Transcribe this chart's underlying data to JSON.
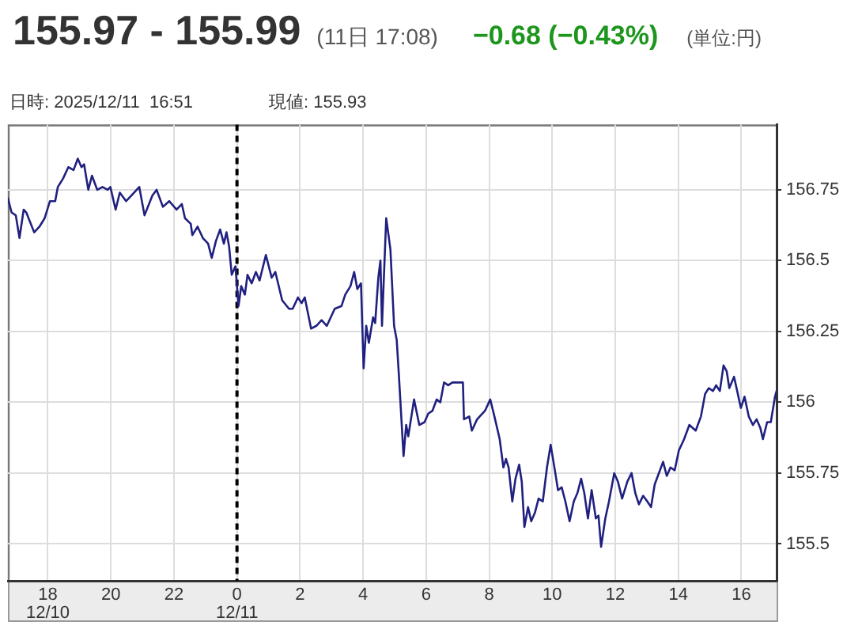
{
  "chart_data": {
    "type": "line",
    "title": "155.97 - 155.99",
    "subtitle": "(11日 17:08)",
    "annotations": [
      "−0.68 (−0.43%)",
      "(単位:円)",
      "日時: 2025/12/11  16:51",
      "現値: 155.93"
    ],
    "x": [
      "2025-12-10T16:44",
      "2025-12-10T16:51",
      "2025-12-10T16:59",
      "2025-12-10T17:06",
      "2025-12-10T17:14",
      "2025-12-10T17:19",
      "2025-12-10T17:34",
      "2025-12-10T17:44",
      "2025-12-10T17:54",
      "2025-12-10T18:04",
      "2025-12-10T18:14",
      "2025-12-10T18:19",
      "2025-12-10T18:29",
      "2025-12-10T18:39",
      "2025-12-10T18:49",
      "2025-12-10T18:57",
      "2025-12-10T19:04",
      "2025-12-10T19:09",
      "2025-12-10T19:17",
      "2025-12-10T19:24",
      "2025-12-10T19:34",
      "2025-12-10T19:44",
      "2025-12-10T19:54",
      "2025-12-10T19:59",
      "2025-12-10T20:09",
      "2025-12-10T20:17",
      "2025-12-10T20:29",
      "2025-12-10T20:39",
      "2025-12-10T20:54",
      "2025-12-10T21:04",
      "2025-12-10T21:19",
      "2025-12-10T21:27",
      "2025-12-10T21:39",
      "2025-12-10T21:51",
      "2025-12-10T22:05",
      "2025-12-10T22:15",
      "2025-12-10T22:21",
      "2025-12-10T22:32",
      "2025-12-10T22:35",
      "2025-12-10T22:45",
      "2025-12-10T22:55",
      "2025-12-10T23:05",
      "2025-12-10T23:12",
      "2025-12-10T23:20",
      "2025-12-10T23:28",
      "2025-12-10T23:35",
      "2025-12-10T23:40",
      "2025-12-10T23:45",
      "2025-12-10T23:50",
      "2025-12-10T23:57",
      "2025-12-11T00:03",
      "2025-12-11T00:08",
      "2025-12-11T00:15",
      "2025-12-11T00:20",
      "2025-12-11T00:28",
      "2025-12-11T00:36",
      "2025-12-11T00:43",
      "2025-12-11T00:55",
      "2025-12-11T01:06",
      "2025-12-11T01:13",
      "2025-12-11T01:26",
      "2025-12-11T01:39",
      "2025-12-11T01:46",
      "2025-12-11T01:56",
      "2025-12-11T02:03",
      "2025-12-11T02:09",
      "2025-12-11T02:21",
      "2025-12-11T02:31",
      "2025-12-11T02:41",
      "2025-12-11T02:51",
      "2025-12-11T03:06",
      "2025-12-11T03:19",
      "2025-12-11T03:26",
      "2025-12-11T03:36",
      "2025-12-11T03:43",
      "2025-12-11T03:49",
      "2025-12-11T03:56",
      "2025-12-11T04:01",
      "2025-12-11T04:06",
      "2025-12-11T04:11",
      "2025-12-11T04:19",
      "2025-12-11T04:23",
      "2025-12-11T04:29",
      "2025-12-11T04:33",
      "2025-12-11T04:36",
      "2025-12-11T04:44",
      "2025-12-11T04:52",
      "2025-12-11T04:59",
      "2025-12-11T05:04",
      "2025-12-11T05:08",
      "2025-12-11T05:17",
      "2025-12-11T05:22",
      "2025-12-11T05:26",
      "2025-12-11T05:37",
      "2025-12-11T05:47",
      "2025-12-11T05:57",
      "2025-12-11T06:04",
      "2025-12-11T06:12",
      "2025-12-11T06:20",
      "2025-12-11T06:27",
      "2025-12-11T06:34",
      "2025-12-11T06:42",
      "2025-12-11T06:50",
      "2025-12-11T07:10",
      "2025-12-11T07:12",
      "2025-12-11T07:22",
      "2025-12-11T07:27",
      "2025-12-11T07:37",
      "2025-12-11T07:52",
      "2025-12-11T08:02",
      "2025-12-11T08:10",
      "2025-12-11T08:20",
      "2025-12-11T08:27",
      "2025-12-11T08:32",
      "2025-12-11T08:37",
      "2025-12-11T08:44",
      "2025-12-11T08:50",
      "2025-12-11T08:57",
      "2025-12-11T09:02",
      "2025-12-11T09:07",
      "2025-12-11T09:14",
      "2025-12-11T09:20",
      "2025-12-11T09:27",
      "2025-12-11T09:34",
      "2025-12-11T09:42",
      "2025-12-11T09:50",
      "2025-12-11T09:57",
      "2025-12-11T10:05",
      "2025-12-11T10:11",
      "2025-12-11T10:18",
      "2025-12-11T10:25",
      "2025-12-11T10:33",
      "2025-12-11T10:41",
      "2025-12-11T10:48",
      "2025-12-11T10:55",
      "2025-12-11T11:01",
      "2025-12-11T11:08",
      "2025-12-11T11:15",
      "2025-12-11T11:23",
      "2025-12-11T11:28",
      "2025-12-11T11:33",
      "2025-12-11T11:41",
      "2025-12-11T11:48",
      "2025-12-11T11:58",
      "2025-12-11T12:05",
      "2025-12-11T12:13",
      "2025-12-11T12:23",
      "2025-12-11T12:31",
      "2025-12-11T12:38",
      "2025-12-11T12:45",
      "2025-12-11T12:53",
      "2025-12-11T13:01",
      "2025-12-11T13:08",
      "2025-12-11T13:15",
      "2025-12-11T13:23",
      "2025-12-11T13:31",
      "2025-12-11T13:38",
      "2025-12-11T13:45",
      "2025-12-11T13:53",
      "2025-12-11T14:01",
      "2025-12-11T14:11",
      "2025-12-11T14:21",
      "2025-12-11T14:33",
      "2025-12-11T14:43",
      "2025-12-11T14:51",
      "2025-12-11T14:58",
      "2025-12-11T15:06",
      "2025-12-11T15:12",
      "2025-12-11T15:19",
      "2025-12-11T15:26",
      "2025-12-11T15:32",
      "2025-12-11T15:37",
      "2025-12-11T15:46",
      "2025-12-11T15:52",
      "2025-12-11T15:59",
      "2025-12-11T16:06",
      "2025-12-11T16:14",
      "2025-12-11T16:22",
      "2025-12-11T16:29",
      "2025-12-11T16:36",
      "2025-12-11T16:41",
      "2025-12-11T16:49",
      "2025-12-11T16:56",
      "2025-12-11T17:04",
      "2025-12-11T17:07"
    ],
    "values": [
      156.72,
      156.67,
      156.66,
      156.58,
      156.68,
      156.67,
      156.6,
      156.62,
      156.65,
      156.71,
      156.71,
      156.76,
      156.79,
      156.83,
      156.82,
      156.86,
      156.83,
      156.84,
      156.75,
      156.8,
      156.75,
      156.76,
      156.75,
      156.76,
      156.68,
      156.74,
      156.71,
      156.73,
      156.76,
      156.66,
      156.73,
      156.75,
      156.69,
      156.71,
      156.68,
      156.7,
      156.65,
      156.63,
      156.59,
      156.62,
      156.58,
      156.56,
      156.51,
      156.57,
      156.61,
      156.56,
      156.6,
      156.55,
      156.45,
      156.48,
      156.34,
      156.41,
      156.38,
      156.45,
      156.42,
      156.46,
      156.43,
      156.52,
      156.44,
      156.46,
      156.36,
      156.33,
      156.33,
      156.37,
      156.35,
      156.37,
      156.26,
      156.27,
      156.29,
      156.27,
      156.33,
      156.34,
      156.38,
      156.41,
      156.46,
      156.4,
      156.42,
      156.12,
      156.27,
      156.21,
      156.3,
      156.28,
      156.44,
      156.5,
      156.27,
      156.65,
      156.54,
      156.27,
      156.22,
      156.1,
      155.81,
      155.92,
      155.88,
      156.01,
      155.92,
      155.93,
      155.96,
      155.97,
      156.01,
      156.0,
      156.07,
      156.06,
      156.07,
      156.07,
      155.94,
      155.95,
      155.9,
      155.94,
      155.97,
      156.01,
      155.95,
      155.87,
      155.77,
      155.8,
      155.77,
      155.65,
      155.73,
      155.78,
      155.72,
      155.56,
      155.63,
      155.58,
      155.61,
      155.66,
      155.65,
      155.77,
      155.85,
      155.76,
      155.69,
      155.7,
      155.65,
      155.58,
      155.65,
      155.68,
      155.73,
      155.68,
      155.59,
      155.69,
      155.59,
      155.6,
      155.49,
      155.59,
      155.65,
      155.75,
      155.72,
      155.66,
      155.72,
      155.75,
      155.68,
      155.64,
      155.67,
      155.65,
      155.63,
      155.71,
      155.75,
      155.79,
      155.74,
      155.77,
      155.76,
      155.83,
      155.87,
      155.92,
      155.9,
      155.95,
      156.03,
      156.05,
      156.04,
      156.06,
      156.04,
      156.13,
      156.11,
      156.05,
      156.09,
      156.04,
      155.98,
      156.02,
      155.95,
      155.92,
      155.94,
      155.91,
      155.87,
      155.93,
      155.93,
      156.02,
      156.04
    ],
    "color": "#202080",
    "xlim": [
      "2025-12-10T16:44",
      "2025-12-11T17:07"
    ],
    "xticks": [
      {
        "value": "2025-12-10T18:00",
        "label": "18\n12/10"
      },
      {
        "value": "2025-12-10T20:00",
        "label": "20"
      },
      {
        "value": "2025-12-10T22:00",
        "label": "22"
      },
      {
        "value": "2025-12-11T00:00",
        "label": "0\n12/11"
      },
      {
        "value": "2025-12-11T02:00",
        "label": "2"
      },
      {
        "value": "2025-12-11T04:00",
        "label": "4"
      },
      {
        "value": "2025-12-11T06:00",
        "label": "6"
      },
      {
        "value": "2025-12-11T08:00",
        "label": "8"
      },
      {
        "value": "2025-12-11T10:00",
        "label": "10"
      },
      {
        "value": "2025-12-11T12:00",
        "label": "12"
      },
      {
        "value": "2025-12-11T14:00",
        "label": "14"
      },
      {
        "value": "2025-12-11T16:00",
        "label": "16"
      }
    ],
    "ylim": [
      155.37,
      156.98
    ],
    "yticks": [
      155.5,
      155.75,
      156,
      156.25,
      156.5,
      156.75
    ],
    "grid": true,
    "ref_lines": [
      {
        "axis": "x",
        "value": "2025-12-11T00:00",
        "color": "#000000",
        "line_style": "dashed"
      }
    ]
  }
}
